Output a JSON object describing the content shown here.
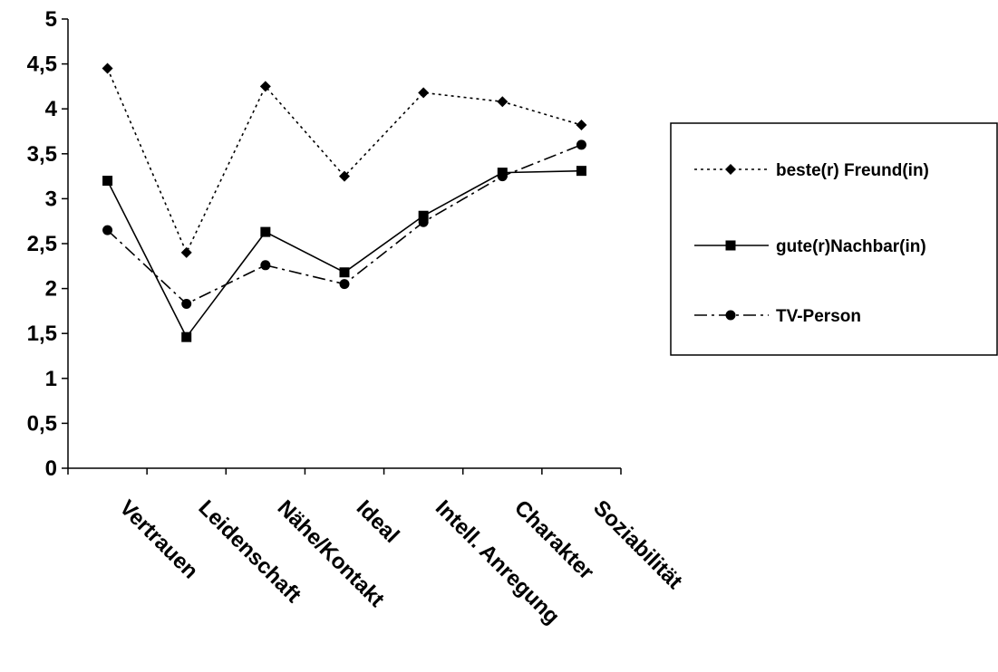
{
  "chart_data": {
    "type": "line",
    "categories": [
      "Vertrauen",
      "Leidenschaft",
      "Nähe/Kontakt",
      "Ideal",
      "Intell. Anregung",
      "Charakter",
      "Soziabilität"
    ],
    "series": [
      {
        "name": "beste(r) Freund(in)",
        "values": [
          4.45,
          2.4,
          4.25,
          3.25,
          4.18,
          4.08,
          3.82
        ],
        "marker": "diamond",
        "dash": "dotted",
        "color": "#000000"
      },
      {
        "name": "gute(r)Nachbar(in)",
        "values": [
          3.2,
          1.46,
          2.63,
          2.18,
          2.81,
          3.29,
          3.31
        ],
        "marker": "square",
        "dash": "solid",
        "color": "#000000"
      },
      {
        "name": "TV-Person",
        "values": [
          2.65,
          1.83,
          2.26,
          2.05,
          2.74,
          3.25,
          3.6
        ],
        "marker": "circle",
        "dash": "dash-dot",
        "color": "#000000"
      }
    ],
    "yticks": [
      "0",
      "0,5",
      "1",
      "1,5",
      "2",
      "2,5",
      "3",
      "3,5",
      "4",
      "4,5",
      "5"
    ],
    "ylim": [
      0,
      5
    ],
    "grid": false,
    "legend_position": "right"
  }
}
